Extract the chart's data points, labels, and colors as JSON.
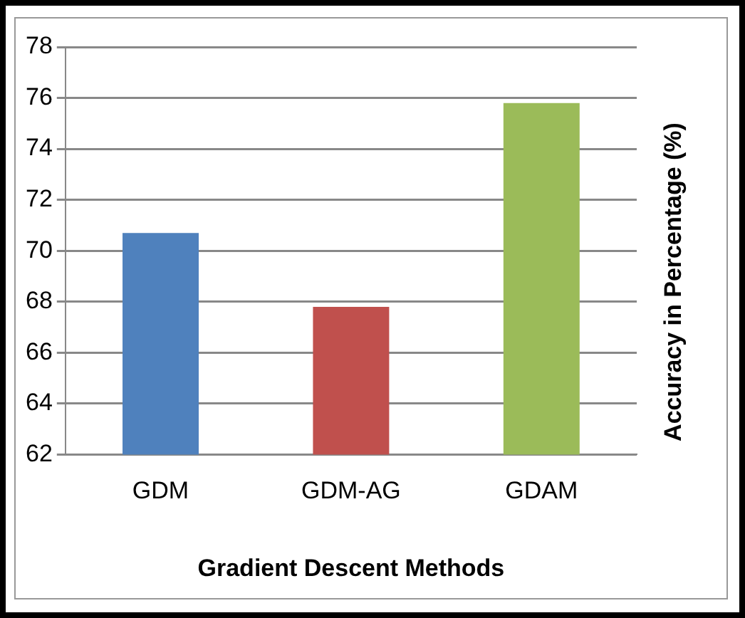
{
  "chart_data": {
    "type": "bar",
    "xlabel": "Gradient Descent Methods",
    "ylabel": "Accuracy in Percentage (%)",
    "categories": [
      "GDM",
      "GDM-AG",
      "GDAM"
    ],
    "values": [
      70.7,
      67.8,
      75.8
    ],
    "colors": [
      "#4f81bd",
      "#c0504d",
      "#9bbb59"
    ],
    "ylim": [
      62,
      78
    ],
    "yticks": [
      62,
      64,
      66,
      68,
      70,
      72,
      74,
      76,
      78
    ],
    "grid": "y",
    "legend": false
  }
}
